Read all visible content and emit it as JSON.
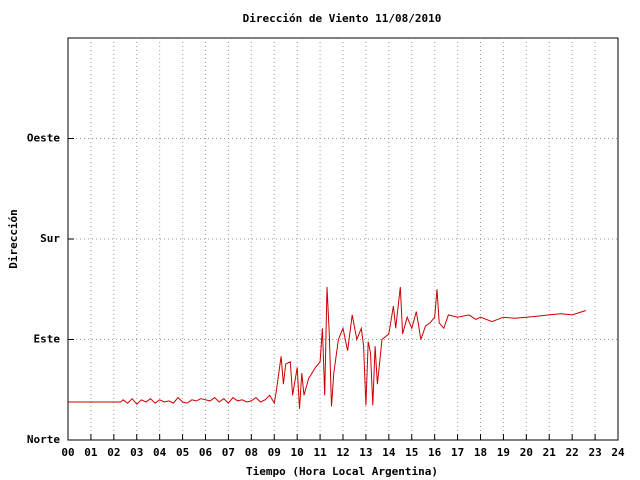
{
  "chart_data": {
    "type": "line",
    "title": "Dirección de Viento 11/08/2010",
    "x_label": "Tiempo (Hora Local Argentina)",
    "y_label": "Dirección",
    "x": [
      0,
      2.3,
      2.4,
      2.6,
      2.8,
      3.0,
      3.2,
      3.4,
      3.6,
      3.8,
      4.0,
      4.2,
      4.4,
      4.6,
      4.8,
      5.0,
      5.2,
      5.4,
      5.6,
      5.8,
      6.0,
      6.2,
      6.4,
      6.6,
      6.8,
      7.0,
      7.2,
      7.4,
      7.6,
      7.8,
      8.0,
      8.2,
      8.4,
      8.6,
      8.8,
      9.0,
      9.1,
      9.2,
      9.3,
      9.4,
      9.5,
      9.7,
      9.8,
      10.0,
      10.1,
      10.2,
      10.3,
      10.5,
      10.8,
      11.0,
      11.1,
      11.2,
      11.3,
      11.4,
      11.5,
      11.6,
      11.8,
      12.0,
      12.2,
      12.4,
      12.6,
      12.8,
      12.9,
      13.0,
      13.1,
      13.2,
      13.3,
      13.4,
      13.5,
      13.7,
      14.0,
      14.2,
      14.3,
      14.5,
      14.6,
      14.8,
      15.0,
      15.2,
      15.4,
      15.6,
      15.8,
      16.0,
      16.1,
      16.2,
      16.4,
      16.6,
      17.0,
      17.5,
      17.8,
      18.0,
      18.5,
      19.0,
      19.5,
      20.0,
      20.5,
      21.0,
      21.5,
      22.0,
      22.6
    ],
    "series": [
      {
        "color": "#cc0000",
        "values": [
          34,
          34,
          36,
          33,
          37,
          32,
          36,
          34,
          37,
          33,
          36,
          34,
          35,
          33,
          38,
          34,
          33,
          36,
          35,
          37,
          36,
          35,
          38,
          34,
          37,
          33,
          38,
          35,
          36,
          34,
          35,
          38,
          34,
          36,
          40,
          33,
          45,
          60,
          75,
          50,
          68,
          70,
          40,
          65,
          28,
          60,
          40,
          55,
          65,
          70,
          100,
          40,
          137,
          95,
          30,
          60,
          90,
          100,
          80,
          112,
          90,
          100,
          84,
          31,
          88,
          78,
          31,
          84,
          50,
          90,
          95,
          120,
          100,
          137,
          95,
          110,
          100,
          115,
          90,
          102,
          105,
          110,
          135,
          105,
          100,
          112,
          110,
          112,
          108,
          110,
          106,
          110,
          109,
          110,
          111,
          112,
          113,
          112,
          116
        ]
      }
    ],
    "xlim": [
      0,
      24
    ],
    "xticks": [
      {
        "value": 0,
        "label": "00"
      },
      {
        "value": 1,
        "label": "01"
      },
      {
        "value": 2,
        "label": "02"
      },
      {
        "value": 3,
        "label": "03"
      },
      {
        "value": 4,
        "label": "04"
      },
      {
        "value": 5,
        "label": "05"
      },
      {
        "value": 6,
        "label": "06"
      },
      {
        "value": 7,
        "label": "07"
      },
      {
        "value": 8,
        "label": "08"
      },
      {
        "value": 9,
        "label": "09"
      },
      10,
      11,
      12,
      13,
      14,
      15,
      16,
      17,
      18,
      19,
      20,
      21,
      22,
      23,
      24
    ],
    "ylim": [
      0,
      360
    ],
    "yticks": [
      {
        "value": 0,
        "label": "Norte"
      },
      {
        "value": 90,
        "label": "Este"
      },
      {
        "value": 180,
        "label": "Sur"
      },
      {
        "value": 270,
        "label": "Oeste"
      }
    ],
    "grid": true
  }
}
